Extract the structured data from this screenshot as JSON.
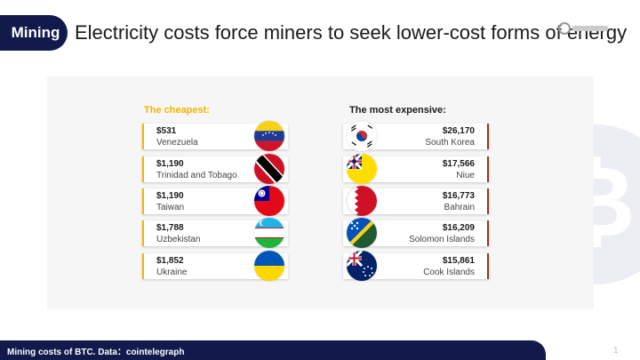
{
  "header": {
    "tag": "Mining",
    "title": "Electricity costs force miners to seek lower-cost forms of energy"
  },
  "columns": {
    "cheapest_label": "The cheapest:",
    "expensive_label": "The most expensive:"
  },
  "cheapest": [
    {
      "price": "$531",
      "country": "Venezuela",
      "flag": "venezuela-flag"
    },
    {
      "price": "$1,190",
      "country": "Trinidad and Tobago",
      "flag": "trinidad-and-tobago-flag"
    },
    {
      "price": "$1,190",
      "country": "Taiwan",
      "flag": "taiwan-flag"
    },
    {
      "price": "$1,788",
      "country": "Uzbekistan",
      "flag": "uzbekistan-flag"
    },
    {
      "price": "$1,852",
      "country": "Ukraine",
      "flag": "ukraine-flag"
    }
  ],
  "expensive": [
    {
      "price": "$26,170",
      "country": "South Korea",
      "flag": "south-korea-flag"
    },
    {
      "price": "$17,566",
      "country": "Niue",
      "flag": "niue-flag"
    },
    {
      "price": "$16,773",
      "country": "Bahrain",
      "flag": "bahrain-flag"
    },
    {
      "price": "$16,209",
      "country": "Solomon Islands",
      "flag": "solomon-islands-flag"
    },
    {
      "price": "$15,861",
      "country": "Cook Islands",
      "flag": "cook-islands-flag"
    }
  ],
  "footer": {
    "caption": "Mining costs of BTC. Data：cointelegraph",
    "page": "1"
  },
  "colors": {
    "navy": "#111a4a",
    "accent_yellow": "#f5b400",
    "accent_brown": "#8a3a1f"
  }
}
